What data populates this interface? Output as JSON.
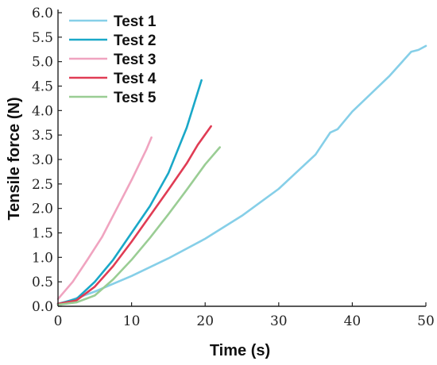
{
  "chart_data": {
    "type": "line",
    "title": "",
    "xlabel": "Time (s)",
    "ylabel": "Tensile force (N)",
    "xlim": [
      0,
      50
    ],
    "ylim": [
      0,
      6.0
    ],
    "x_ticks": [
      "0",
      "10",
      "20",
      "30",
      "40",
      "50"
    ],
    "y_ticks": [
      "0.0",
      "0.5",
      "1.0",
      "1.5",
      "2.0",
      "2.5",
      "3.0",
      "3.5",
      "4.0",
      "4.5",
      "5.0",
      "5.5",
      "6.0"
    ],
    "grid": false,
    "legend_position": "top-left",
    "series": [
      {
        "name": "Test 1",
        "color": "#86cfe8",
        "points": [
          [
            0,
            0.03
          ],
          [
            5,
            0.3
          ],
          [
            10,
            0.62
          ],
          [
            15,
            0.98
          ],
          [
            20,
            1.38
          ],
          [
            25,
            1.85
          ],
          [
            30,
            2.4
          ],
          [
            35,
            3.1
          ],
          [
            37,
            3.55
          ],
          [
            38,
            3.62
          ],
          [
            40,
            3.98
          ],
          [
            45,
            4.7
          ],
          [
            48,
            5.2
          ],
          [
            49,
            5.24
          ],
          [
            50,
            5.32
          ]
        ]
      },
      {
        "name": "Test 2",
        "color": "#1aa8c8",
        "points": [
          [
            0,
            0.05
          ],
          [
            2.5,
            0.15
          ],
          [
            5,
            0.5
          ],
          [
            7.5,
            0.95
          ],
          [
            10,
            1.5
          ],
          [
            12.5,
            2.05
          ],
          [
            15,
            2.72
          ],
          [
            17.5,
            3.65
          ],
          [
            19.5,
            4.62
          ]
        ]
      },
      {
        "name": "Test 3",
        "color": "#f0a4c0",
        "points": [
          [
            0,
            0.15
          ],
          [
            2,
            0.5
          ],
          [
            4,
            0.95
          ],
          [
            6,
            1.42
          ],
          [
            8,
            2.0
          ],
          [
            10,
            2.58
          ],
          [
            12,
            3.2
          ],
          [
            12.7,
            3.45
          ]
        ]
      },
      {
        "name": "Test 4",
        "color": "#e03c54",
        "points": [
          [
            0,
            0.05
          ],
          [
            2.5,
            0.12
          ],
          [
            5,
            0.4
          ],
          [
            7.5,
            0.82
          ],
          [
            10,
            1.32
          ],
          [
            12.5,
            1.85
          ],
          [
            15,
            2.38
          ],
          [
            17.5,
            2.92
          ],
          [
            19,
            3.3
          ],
          [
            20.8,
            3.68
          ]
        ]
      },
      {
        "name": "Test 5",
        "color": "#9acd94",
        "points": [
          [
            0,
            0.03
          ],
          [
            2.5,
            0.08
          ],
          [
            5,
            0.22
          ],
          [
            7.5,
            0.55
          ],
          [
            10,
            0.95
          ],
          [
            12.5,
            1.4
          ],
          [
            15,
            1.88
          ],
          [
            17.5,
            2.38
          ],
          [
            20,
            2.9
          ],
          [
            22,
            3.25
          ]
        ]
      }
    ]
  }
}
